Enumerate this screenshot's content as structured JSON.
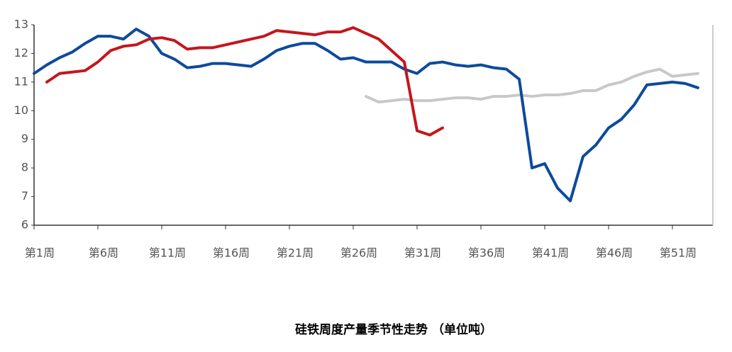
{
  "chart_data": {
    "type": "line",
    "title": "硅铁周度产量季节性走势  （单位吨）",
    "categories": [
      "第1周",
      null,
      null,
      null,
      null,
      "第6周",
      null,
      null,
      null,
      null,
      "第11周",
      null,
      null,
      null,
      null,
      "第16周",
      null,
      null,
      null,
      null,
      "第21周",
      null,
      null,
      null,
      null,
      "第26周",
      null,
      null,
      null,
      null,
      "第31周",
      null,
      null,
      null,
      null,
      "第36周",
      null,
      null,
      null,
      null,
      "第41周",
      null,
      null,
      null,
      null,
      "第46周",
      null,
      null,
      null,
      null,
      "第51周",
      null,
      null
    ],
    "ylim": [
      6,
      13
    ],
    "yticks": [
      6,
      7,
      8,
      9,
      10,
      11,
      12,
      13
    ],
    "series": [
      {
        "color": "#0d4a9c",
        "values": [
          11.3,
          11.6,
          11.85,
          12.05,
          12.35,
          12.6,
          12.6,
          12.5,
          12.85,
          12.6,
          12.0,
          11.8,
          11.5,
          11.55,
          11.65,
          11.65,
          11.6,
          11.55,
          11.8,
          12.1,
          12.25,
          12.35,
          12.35,
          12.1,
          11.8,
          11.85,
          11.7,
          11.7,
          11.7,
          11.45,
          11.3,
          11.65,
          11.7,
          11.6,
          11.55,
          11.6,
          11.5,
          11.45,
          11.1,
          8.0,
          8.15,
          7.3,
          6.85,
          8.4,
          8.8,
          9.4,
          9.7,
          10.2,
          10.9,
          10.95,
          11.0,
          10.95,
          10.8
        ]
      },
      {
        "color": "#c4161c",
        "values": [
          null,
          11.0,
          11.3,
          11.35,
          11.4,
          11.7,
          12.1,
          12.25,
          12.3,
          12.5,
          12.55,
          12.45,
          12.15,
          12.2,
          12.2,
          12.3,
          12.4,
          12.5,
          12.6,
          12.8,
          12.75,
          12.7,
          12.65,
          12.75,
          12.75,
          12.9,
          12.7,
          12.5,
          12.1,
          11.7,
          9.3,
          9.15,
          9.4,
          null,
          null,
          null,
          null,
          null,
          null,
          null,
          null,
          null,
          null,
          null,
          null,
          null,
          null,
          null,
          null,
          null,
          null,
          null,
          null
        ]
      },
      {
        "color": "#c8c8c8",
        "values": [
          null,
          null,
          null,
          null,
          null,
          null,
          null,
          null,
          null,
          null,
          null,
          null,
          null,
          null,
          null,
          null,
          null,
          null,
          null,
          null,
          null,
          null,
          null,
          null,
          null,
          null,
          10.5,
          10.3,
          10.35,
          10.4,
          10.35,
          10.35,
          10.4,
          10.45,
          10.45,
          10.4,
          10.5,
          10.5,
          10.55,
          10.5,
          10.55,
          10.55,
          10.6,
          10.7,
          10.7,
          10.9,
          11.0,
          11.2,
          11.35,
          11.45,
          11.2,
          11.25,
          11.3
        ]
      }
    ]
  }
}
